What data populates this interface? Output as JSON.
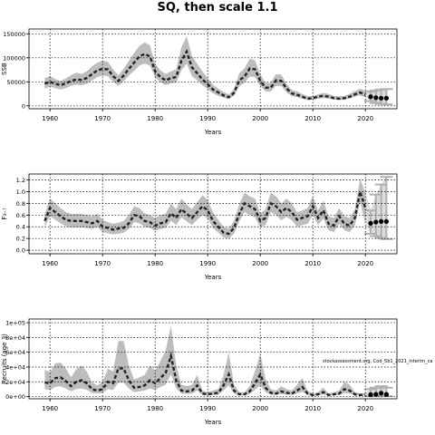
{
  "title": "SQ, then scale 1.1",
  "colors": {
    "band": "#bdbdbd",
    "line": "#222222",
    "grid": "#000000",
    "error_bar": "#b0b0b0"
  },
  "source_label": "stockassessment.org, Cod_5b1_2021_interim_ca",
  "chart_data": [
    {
      "type": "line",
      "ylabel": "SSB",
      "xlabel": "Years",
      "xlim": [
        1956,
        2026
      ],
      "ylim": [
        -6000,
        160000
      ],
      "grid": true,
      "xticks": [
        1960,
        1970,
        1980,
        1990,
        2000,
        2010,
        2020
      ],
      "yticks": [
        0,
        50000,
        100000,
        150000
      ],
      "ytick_labels": [
        "0",
        "50000",
        "100000",
        "150000"
      ],
      "x": [
        1959,
        1960,
        1961,
        1962,
        1963,
        1964,
        1965,
        1966,
        1967,
        1968,
        1969,
        1970,
        1971,
        1972,
        1973,
        1974,
        1975,
        1976,
        1977,
        1978,
        1979,
        1980,
        1981,
        1982,
        1983,
        1984,
        1985,
        1986,
        1987,
        1988,
        1989,
        1990,
        1991,
        1992,
        1993,
        1994,
        1995,
        1996,
        1997,
        1998,
        1999,
        2000,
        2001,
        2002,
        2003,
        2004,
        2005,
        2006,
        2007,
        2008,
        2009,
        2010,
        2011,
        2012,
        2013,
        2014,
        2015,
        2016,
        2017,
        2018,
        2019,
        2020
      ],
      "estimate": [
        46000,
        50000,
        46000,
        43000,
        47000,
        52000,
        55000,
        54000,
        58000,
        66000,
        74000,
        77000,
        76000,
        62000,
        52000,
        63000,
        77000,
        90000,
        103000,
        108000,
        103000,
        72000,
        60000,
        53000,
        58000,
        60000,
        94000,
        113000,
        80000,
        68000,
        55000,
        45000,
        34000,
        28000,
        22000,
        18000,
        27000,
        53000,
        61000,
        78000,
        76000,
        52000,
        38000,
        38000,
        53000,
        52000,
        36000,
        26000,
        23000,
        19000,
        15000,
        16000,
        19000,
        21000,
        19000,
        16000,
        15000,
        16000,
        19000,
        24000,
        28000,
        23000
      ],
      "upper": [
        58000,
        62000,
        56000,
        52000,
        57000,
        64000,
        69000,
        66000,
        72000,
        82000,
        90000,
        94000,
        92000,
        76000,
        64000,
        77000,
        94000,
        110000,
        125000,
        132000,
        126000,
        88000,
        74000,
        66000,
        72000,
        76000,
        122000,
        145000,
        104000,
        88000,
        72000,
        58000,
        44000,
        36000,
        29000,
        24000,
        35000,
        68000,
        78000,
        98000,
        95000,
        66000,
        48000,
        48000,
        66000,
        65000,
        46000,
        33000,
        30000,
        25000,
        20000,
        21000,
        24000,
        27000,
        25000,
        21000,
        20000,
        21000,
        25000,
        31000,
        36000,
        31000
      ],
      "lower": [
        36000,
        40000,
        37000,
        34000,
        37000,
        42000,
        44000,
        43000,
        46000,
        53000,
        60000,
        63000,
        62000,
        50000,
        42000,
        51000,
        63000,
        73000,
        84000,
        88000,
        84000,
        59000,
        49000,
        43000,
        47000,
        48000,
        74000,
        88000,
        62000,
        53000,
        43000,
        35000,
        26000,
        21000,
        17000,
        14000,
        21000,
        41000,
        48000,
        61000,
        60000,
        41000,
        30000,
        30000,
        42000,
        41000,
        28000,
        20000,
        18000,
        15000,
        12000,
        13000,
        15000,
        16000,
        15000,
        13000,
        12000,
        13000,
        15000,
        19000,
        22000,
        17000
      ],
      "forecast": {
        "x": [
          2021,
          2022,
          2023,
          2024
        ],
        "values": [
          19000,
          17000,
          16000,
          16000
        ],
        "upper": [
          30000,
          32000,
          34000,
          35000
        ],
        "lower": [
          10000,
          6000,
          4000,
          3000
        ]
      }
    },
    {
      "type": "line",
      "ylabel": "F₃₋₇",
      "xlabel": "Years",
      "xlim": [
        1956,
        2026
      ],
      "ylim": [
        -0.06,
        1.3
      ],
      "grid": true,
      "xticks": [
        1960,
        1970,
        1980,
        1990,
        2000,
        2010,
        2020
      ],
      "yticks": [
        0.0,
        0.2,
        0.4,
        0.6,
        0.8,
        1.0,
        1.2
      ],
      "ytick_labels": [
        "0.0",
        "0.2",
        "0.4",
        "0.6",
        "0.8",
        "1.0",
        "1.2"
      ],
      "x": [
        1959,
        1960,
        1961,
        1962,
        1963,
        1964,
        1965,
        1966,
        1967,
        1968,
        1969,
        1970,
        1971,
        1972,
        1973,
        1974,
        1975,
        1976,
        1977,
        1978,
        1979,
        1980,
        1981,
        1982,
        1983,
        1984,
        1985,
        1986,
        1987,
        1988,
        1989,
        1990,
        1991,
        1992,
        1993,
        1994,
        1995,
        1996,
        1997,
        1998,
        1999,
        2000,
        2001,
        2002,
        2003,
        2004,
        2005,
        2006,
        2007,
        2008,
        2009,
        2010,
        2011,
        2012,
        2013,
        2014,
        2015,
        2016,
        2017,
        2018,
        2019,
        2020
      ],
      "estimate": [
        0.5,
        0.72,
        0.65,
        0.58,
        0.52,
        0.5,
        0.5,
        0.5,
        0.48,
        0.46,
        0.5,
        0.4,
        0.38,
        0.35,
        0.37,
        0.38,
        0.46,
        0.6,
        0.58,
        0.5,
        0.48,
        0.42,
        0.46,
        0.48,
        0.63,
        0.55,
        0.7,
        0.62,
        0.55,
        0.65,
        0.75,
        0.68,
        0.5,
        0.4,
        0.3,
        0.28,
        0.38,
        0.62,
        0.8,
        0.75,
        0.7,
        0.5,
        0.55,
        0.8,
        0.75,
        0.65,
        0.72,
        0.65,
        0.52,
        0.55,
        0.58,
        0.75,
        0.55,
        0.68,
        0.45,
        0.42,
        0.58,
        0.45,
        0.42,
        0.55,
        1.0,
        0.72
      ],
      "upper": [
        0.62,
        0.88,
        0.8,
        0.72,
        0.65,
        0.62,
        0.62,
        0.62,
        0.6,
        0.58,
        0.62,
        0.52,
        0.48,
        0.45,
        0.47,
        0.5,
        0.6,
        0.75,
        0.72,
        0.63,
        0.6,
        0.55,
        0.6,
        0.62,
        0.8,
        0.7,
        0.88,
        0.78,
        0.7,
        0.82,
        0.94,
        0.86,
        0.65,
        0.52,
        0.4,
        0.37,
        0.5,
        0.78,
        0.98,
        0.92,
        0.88,
        0.63,
        0.7,
        0.98,
        0.92,
        0.8,
        0.88,
        0.8,
        0.65,
        0.68,
        0.72,
        0.92,
        0.68,
        0.84,
        0.58,
        0.55,
        0.72,
        0.58,
        0.55,
        0.7,
        1.22,
        0.98
      ],
      "lower": [
        0.4,
        0.58,
        0.52,
        0.46,
        0.41,
        0.39,
        0.39,
        0.39,
        0.38,
        0.36,
        0.4,
        0.31,
        0.29,
        0.27,
        0.28,
        0.3,
        0.36,
        0.48,
        0.46,
        0.4,
        0.38,
        0.33,
        0.36,
        0.38,
        0.5,
        0.43,
        0.56,
        0.49,
        0.43,
        0.52,
        0.6,
        0.54,
        0.38,
        0.3,
        0.22,
        0.2,
        0.28,
        0.49,
        0.65,
        0.6,
        0.56,
        0.39,
        0.43,
        0.65,
        0.6,
        0.51,
        0.57,
        0.51,
        0.4,
        0.43,
        0.45,
        0.6,
        0.43,
        0.54,
        0.34,
        0.31,
        0.45,
        0.34,
        0.31,
        0.42,
        0.82,
        0.46
      ],
      "forecast": {
        "x": [
          2021,
          2022,
          2023,
          2024
        ],
        "values": [
          0.46,
          0.48,
          0.49,
          0.49
        ],
        "upper": [
          0.68,
          0.95,
          1.12,
          1.25
        ],
        "lower": [
          0.28,
          0.24,
          0.21,
          0.19
        ]
      }
    },
    {
      "type": "line",
      "ylabel": "Recruits (age 3)",
      "xlabel": "Years",
      "xlim": [
        1956,
        2026
      ],
      "ylim": [
        -3000,
        105000
      ],
      "grid": true,
      "xticks": [
        1960,
        1970,
        1980,
        1990,
        2000,
        2010,
        2020
      ],
      "yticks": [
        0,
        20000,
        40000,
        60000,
        80000,
        100000
      ],
      "ytick_labels": [
        "0e+00",
        "2e+04",
        "4e+04",
        "6e+04",
        "8e+04",
        "1e+05"
      ],
      "x": [
        1959,
        1960,
        1961,
        1962,
        1963,
        1964,
        1965,
        1966,
        1967,
        1968,
        1969,
        1970,
        1971,
        1972,
        1973,
        1974,
        1975,
        1976,
        1977,
        1978,
        1979,
        1980,
        1981,
        1982,
        1983,
        1984,
        1985,
        1986,
        1987,
        1988,
        1989,
        1990,
        1991,
        1992,
        1993,
        1994,
        1995,
        1996,
        1997,
        1998,
        1999,
        2000,
        2001,
        2002,
        2003,
        2004,
        2005,
        2006,
        2007,
        2008,
        2009,
        2010,
        2011,
        2012,
        2013,
        2014,
        2015,
        2016,
        2017,
        2018,
        2019,
        2020
      ],
      "estimate": [
        19000,
        18000,
        25000,
        26000,
        21000,
        14000,
        20000,
        22000,
        18000,
        10000,
        8000,
        10000,
        20000,
        18000,
        38000,
        38000,
        22000,
        12000,
        13000,
        15000,
        22000,
        18000,
        25000,
        32000,
        55000,
        22000,
        8000,
        7000,
        8000,
        15000,
        4000,
        3000,
        4000,
        5000,
        15000,
        30000,
        8000,
        3000,
        3000,
        7000,
        18000,
        30000,
        12000,
        5000,
        4000,
        7000,
        5000,
        4000,
        8000,
        13000,
        4000,
        2000,
        3000,
        6000,
        2000,
        3000,
        4000,
        10000,
        8000,
        3000,
        2000,
        2500
      ],
      "upper": [
        36000,
        33000,
        45000,
        46000,
        38000,
        26000,
        37000,
        42000,
        34000,
        19000,
        15000,
        20000,
        38000,
        34000,
        75000,
        75000,
        42000,
        23000,
        26000,
        29000,
        42000,
        35000,
        48000,
        62000,
        96000,
        42000,
        16000,
        14000,
        16000,
        29000,
        8000,
        6000,
        8000,
        10000,
        29000,
        60000,
        16000,
        6000,
        6000,
        14000,
        35000,
        58000,
        24000,
        10000,
        8000,
        14000,
        10000,
        8000,
        16000,
        25000,
        8000,
        4000,
        6000,
        12000,
        4000,
        6000,
        8000,
        20000,
        16000,
        6000,
        4000,
        5000
      ],
      "lower": [
        10000,
        9000,
        13000,
        14000,
        11000,
        7000,
        10000,
        11000,
        9000,
        5000,
        4000,
        5000,
        10000,
        9000,
        19000,
        19000,
        11000,
        6000,
        7000,
        8000,
        11000,
        9000,
        13000,
        16000,
        30000,
        11000,
        4000,
        3500,
        4000,
        8000,
        2000,
        1500,
        2000,
        2500,
        8000,
        15000,
        4000,
        1500,
        1500,
        3500,
        9000,
        15000,
        6000,
        2500,
        2000,
        3500,
        2500,
        2000,
        4000,
        6500,
        2000,
        1000,
        1500,
        3000,
        1000,
        1500,
        2000,
        5000,
        4000,
        1500,
        1000,
        1200
      ],
      "forecast": {
        "x": [
          2021,
          2022,
          2023,
          2024
        ],
        "values": [
          2500,
          3000,
          4500,
          3000
        ],
        "upper": [
          10000,
          12000,
          14000,
          12000
        ],
        "lower": [
          500,
          500,
          500,
          500
        ]
      }
    }
  ]
}
